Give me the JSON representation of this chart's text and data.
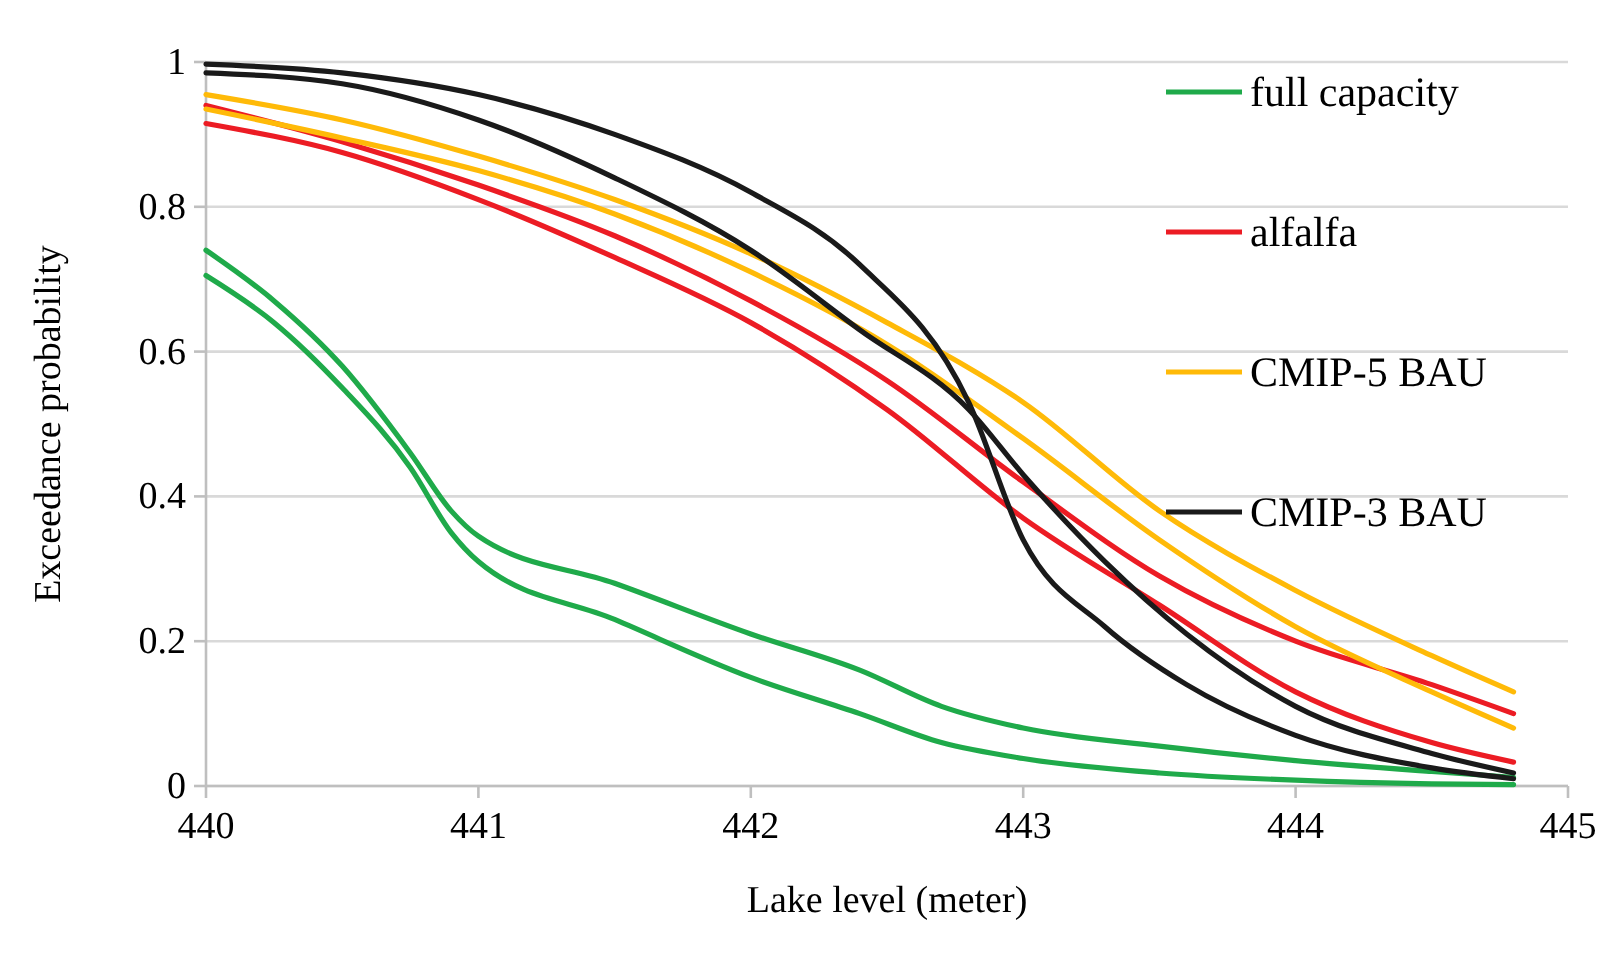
{
  "chart_data": {
    "type": "line",
    "xlabel": "Lake level (meter)",
    "ylabel": "Exceedance probability",
    "xlim": [
      440,
      445
    ],
    "xticks": [
      440,
      441,
      442,
      443,
      444,
      445
    ],
    "ylim": [
      0,
      1
    ],
    "yticks": [
      0,
      0.2,
      0.4,
      0.6,
      0.8,
      1
    ],
    "grid": "y",
    "legend": "right",
    "marker": "none",
    "line_style": "solid",
    "series": [
      {
        "name": "full capacity",
        "color": "#1faa4a",
        "x": [
          440,
          440.25,
          440.5,
          440.75,
          440.9,
          441,
          441.5,
          442,
          442.4,
          442.7,
          443,
          443.5,
          444,
          444.5,
          444.8
        ],
        "values": [
          0.74,
          0.67,
          0.58,
          0.46,
          0.38,
          0.345,
          0.28,
          0.21,
          0.16,
          0.11,
          0.08,
          0.055,
          0.035,
          0.02,
          0.012
        ]
      },
      {
        "color": "#1faa4a",
        "x": [
          440,
          440.25,
          440.5,
          440.75,
          440.9,
          441,
          441.5,
          442,
          442.4,
          442.7,
          443,
          443.5,
          444,
          444.5,
          444.8
        ],
        "values": [
          0.705,
          0.64,
          0.55,
          0.44,
          0.35,
          0.31,
          0.23,
          0.15,
          0.1,
          0.06,
          0.038,
          0.018,
          0.008,
          0.003,
          0.002
        ]
      },
      {
        "name": "alfalfa",
        "color": "#ec1c24",
        "x": [
          440,
          440.5,
          441,
          441.5,
          442,
          442.5,
          443,
          443.5,
          444,
          444.5,
          444.8
        ],
        "values": [
          0.94,
          0.89,
          0.83,
          0.76,
          0.67,
          0.56,
          0.42,
          0.29,
          0.2,
          0.14,
          0.1
        ]
      },
      {
        "color": "#ec1c24",
        "x": [
          440,
          440.5,
          441,
          441.5,
          442,
          442.5,
          443,
          443.5,
          444,
          444.5,
          444.8
        ],
        "values": [
          0.915,
          0.875,
          0.81,
          0.73,
          0.64,
          0.52,
          0.37,
          0.25,
          0.13,
          0.06,
          0.033
        ]
      },
      {
        "name": "CMIP-5 BAU",
        "color": "#ffba08",
        "x": [
          440,
          440.5,
          441,
          441.5,
          442,
          442.5,
          443,
          443.5,
          444,
          444.5,
          444.8
        ],
        "values": [
          0.955,
          0.92,
          0.87,
          0.81,
          0.735,
          0.64,
          0.53,
          0.38,
          0.27,
          0.18,
          0.13
        ]
      },
      {
        "color": "#ffba08",
        "x": [
          440,
          440.5,
          441,
          441.5,
          442,
          442.5,
          443,
          443.5,
          444,
          444.5,
          444.8
        ],
        "values": [
          0.935,
          0.895,
          0.85,
          0.79,
          0.71,
          0.61,
          0.48,
          0.34,
          0.22,
          0.13,
          0.08
        ]
      },
      {
        "name": "CMIP-3 BAU",
        "color": "#1a1a1a",
        "x": [
          440,
          440.5,
          441,
          441.5,
          442,
          442.4,
          442.8,
          443,
          443.3,
          443.6,
          444,
          444.5,
          444.8
        ],
        "values": [
          0.997,
          0.985,
          0.955,
          0.9,
          0.82,
          0.72,
          0.53,
          0.34,
          0.22,
          0.14,
          0.07,
          0.025,
          0.01
        ]
      },
      {
        "color": "#1a1a1a",
        "x": [
          440,
          440.5,
          441,
          441.5,
          442,
          442.4,
          442.8,
          443,
          443.3,
          443.6,
          444,
          444.5,
          444.8
        ],
        "values": [
          0.985,
          0.97,
          0.92,
          0.84,
          0.74,
          0.63,
          0.52,
          0.43,
          0.31,
          0.21,
          0.11,
          0.045,
          0.018
        ]
      }
    ]
  }
}
